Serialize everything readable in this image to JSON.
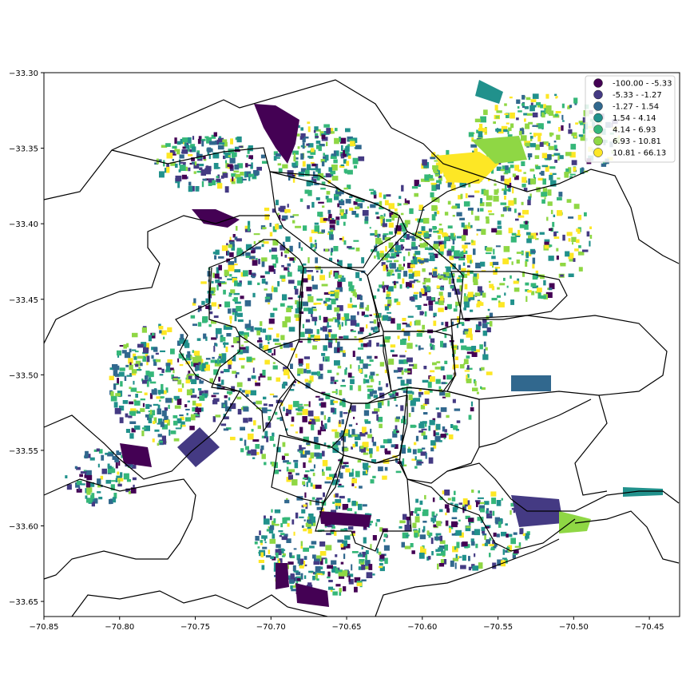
{
  "map": {
    "x_ticks": [
      "−70.85",
      "−70.80",
      "−70.75",
      "−70.70",
      "−70.65",
      "−70.60",
      "−70.55",
      "−70.50",
      "−70.45"
    ],
    "y_ticks": [
      "−33.30",
      "−33.35",
      "−33.40",
      "−33.45",
      "−33.50",
      "−33.55",
      "−33.60",
      "−33.65"
    ],
    "x_tick_values": [
      -70.85,
      -70.8,
      -70.75,
      -70.7,
      -70.65,
      -70.6,
      -70.55,
      -70.5,
      -70.45
    ],
    "y_tick_values": [
      -33.3,
      -33.35,
      -33.4,
      -33.45,
      -33.5,
      -33.55,
      -33.6,
      -33.65
    ],
    "xlim": [
      -70.85,
      -70.43
    ],
    "ylim": [
      -33.66,
      -33.3
    ],
    "boundary_color": "#000000"
  },
  "legend": {
    "placement": "top-right",
    "items": [
      {
        "label": "-100.00 - -5.33",
        "color": "#440154"
      },
      {
        "label": "-5.33 - -1.27",
        "color": "#443a83"
      },
      {
        "label": "-1.27 - 1.54",
        "color": "#31688e"
      },
      {
        "label": "1.54 - 4.14",
        "color": "#21918c"
      },
      {
        "label": "4.14 - 6.93",
        "color": "#35b779"
      },
      {
        "label": "6.93 - 10.81",
        "color": "#8fd744"
      },
      {
        "label": "10.81 - 66.13",
        "color": "#fde725"
      }
    ]
  }
}
